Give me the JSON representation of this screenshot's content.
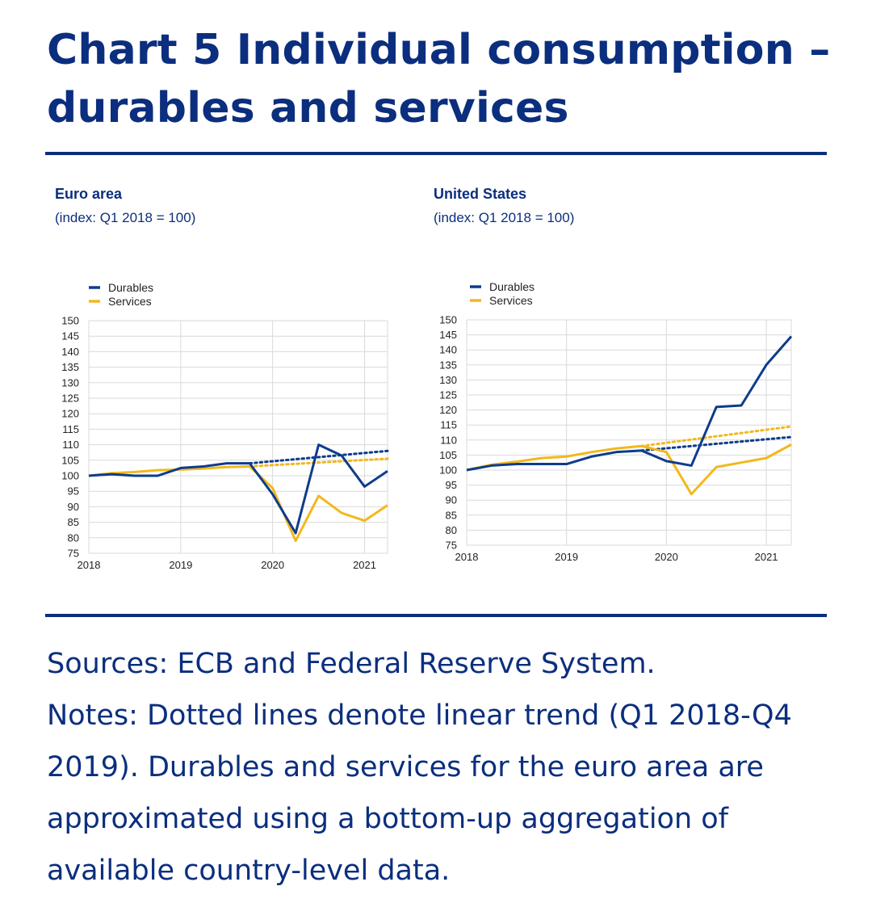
{
  "title": "Chart 5 Individual consumption – durables and services",
  "colors": {
    "durables": "#0e3c8c",
    "services": "#f2b81c",
    "grid": "#d9d9d9",
    "text": "#0b2e7e"
  },
  "panels": [
    {
      "title": "Euro area",
      "subtitle": "(index: Q1 2018 = 100)"
    },
    {
      "title": "United States",
      "subtitle": "(index: Q1 2018 = 100)"
    }
  ],
  "footer": {
    "sources": "Sources: ECB and Federal Reserve System.",
    "notes": "Notes: Dotted lines denote linear trend (Q1 2018-Q4 2019). Durables and services for the euro area are approximated using a bottom-up aggregation of available country-level data."
  },
  "chart_data": [
    {
      "type": "line",
      "title": "Euro area",
      "ylabel": "index: Q1 2018 = 100",
      "ylim": [
        75,
        150
      ],
      "yticks": [
        75,
        80,
        85,
        90,
        95,
        100,
        105,
        110,
        115,
        120,
        125,
        130,
        135,
        140,
        145,
        150
      ],
      "xlim": [
        2018,
        2021.25
      ],
      "xticks": [
        "2018",
        "2019",
        "2020",
        "2021"
      ],
      "legend": "top-left",
      "grid": true,
      "series": [
        {
          "name": "Durables",
          "color": "#0e3c8c",
          "x": [
            2018,
            2018.25,
            2018.5,
            2018.75,
            2019,
            2019.25,
            2019.5,
            2019.75,
            2020,
            2020.25,
            2020.5,
            2020.75,
            2021,
            2021.25
          ],
          "values": [
            100,
            100.5,
            100,
            100,
            102.5,
            103,
            104,
            104,
            94,
            81.5,
            110,
            106.5,
            96.5,
            101.5
          ]
        },
        {
          "name": "Services",
          "color": "#f2b81c",
          "x": [
            2018,
            2018.25,
            2018.5,
            2018.75,
            2019,
            2019.25,
            2019.5,
            2019.75,
            2020,
            2020.25,
            2020.5,
            2020.75,
            2021,
            2021.25
          ],
          "values": [
            100,
            100.8,
            101.2,
            101.8,
            102,
            102.3,
            102.8,
            103,
            96,
            79,
            93.5,
            88,
            85.5,
            90.5
          ]
        }
      ],
      "trends": [
        {
          "name": "Durables trend",
          "color": "#0e3c8c",
          "x": [
            2019.75,
            2021.25
          ],
          "values": [
            104,
            108
          ]
        },
        {
          "name": "Services trend",
          "color": "#f2b81c",
          "x": [
            2019.75,
            2021.25
          ],
          "values": [
            103,
            105.5
          ]
        }
      ]
    },
    {
      "type": "line",
      "title": "United States",
      "ylabel": "index: Q1 2018 = 100",
      "ylim": [
        75,
        150
      ],
      "yticks": [
        75,
        80,
        85,
        90,
        95,
        100,
        105,
        110,
        115,
        120,
        125,
        130,
        135,
        140,
        145,
        150
      ],
      "xlim": [
        2018,
        2021.25
      ],
      "xticks": [
        "2018",
        "2019",
        "2020",
        "2021"
      ],
      "legend": "top-left",
      "grid": true,
      "series": [
        {
          "name": "Durables",
          "color": "#0e3c8c",
          "x": [
            2018,
            2018.25,
            2018.5,
            2018.75,
            2019,
            2019.25,
            2019.5,
            2019.75,
            2020,
            2020.25,
            2020.5,
            2020.75,
            2021,
            2021.25
          ],
          "values": [
            100,
            101.5,
            102,
            102,
            102,
            104.5,
            106,
            106.5,
            103,
            101.5,
            121,
            121.5,
            135,
            144.5
          ]
        },
        {
          "name": "Services",
          "color": "#f2b81c",
          "x": [
            2018,
            2018.25,
            2018.5,
            2018.75,
            2019,
            2019.25,
            2019.5,
            2019.75,
            2020,
            2020.25,
            2020.5,
            2020.75,
            2021,
            2021.25
          ],
          "values": [
            100,
            101.8,
            102.8,
            104,
            104.5,
            106,
            107.2,
            108,
            106,
            92,
            101,
            102.5,
            104,
            108.5
          ]
        }
      ],
      "trends": [
        {
          "name": "Durables trend",
          "color": "#0e3c8c",
          "x": [
            2019.75,
            2021.25
          ],
          "values": [
            106.5,
            111
          ]
        },
        {
          "name": "Services trend",
          "color": "#f2b81c",
          "x": [
            2019.75,
            2021.25
          ],
          "values": [
            108,
            114.5
          ]
        }
      ]
    }
  ]
}
